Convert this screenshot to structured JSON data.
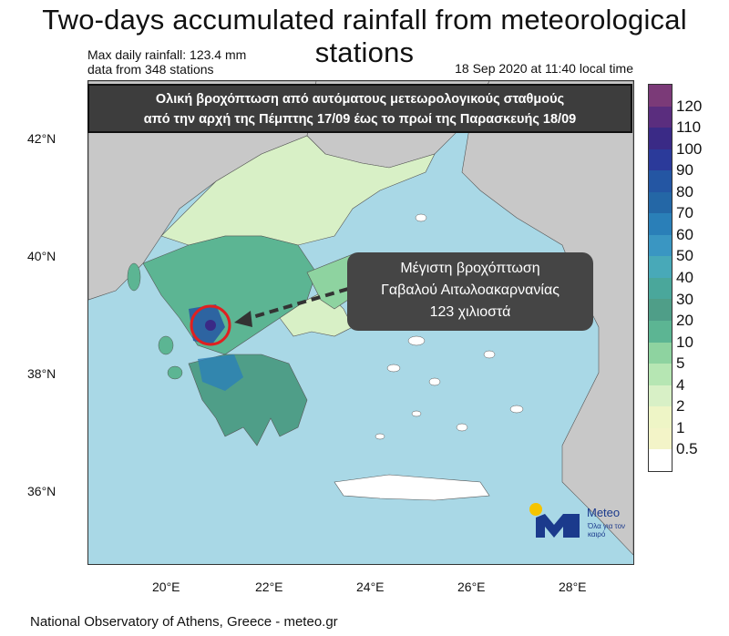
{
  "title": "Two-days accumulated rainfall from meteorological stations",
  "meta": {
    "max_daily": "Max daily rainfall: 123.4 mm",
    "stations": "data from 348 stations",
    "timestamp": "18 Sep 2020 at 11:40 local time"
  },
  "banner": {
    "line1": "Ολική βροχόπτωση από αυτόματους μετεωρολογικούς σταθμούς",
    "line2": "από την αρχή της Πέμπτης 17/09 έως το πρωί της Παρασκευής 18/09"
  },
  "callout": {
    "line1": "Μέγιστη βροχόπτωση",
    "line2": "Γαβαλού Αιτωλοακαρνανίας",
    "line3": "123 χιλιοστά"
  },
  "axes": {
    "lat_labels": [
      "42°N",
      "40°N",
      "38°N",
      "36°N"
    ],
    "lon_labels": [
      "20°E",
      "22°E",
      "24°E",
      "26°E",
      "28°E"
    ]
  },
  "legend": {
    "labels": [
      "120",
      "110",
      "100",
      "90",
      "80",
      "70",
      "60",
      "50",
      "40",
      "30",
      "20",
      "10",
      "5",
      "4",
      "2",
      "1",
      "0.5"
    ],
    "colors": [
      "#7b3a78",
      "#5a2d7e",
      "#3a2a86",
      "#2b3a9a",
      "#2456a3",
      "#2467a6",
      "#2a7fb8",
      "#3a96c2",
      "#48a9b8",
      "#4aa79b",
      "#4f9e88",
      "#5cb593",
      "#8ed3a0",
      "#b6e6b3",
      "#d8f0c6",
      "#eef5c6",
      "#f3f4c8",
      "#ffffff"
    ]
  },
  "footer": "National Observatory of Athens, Greece - meteo.gr",
  "logo": {
    "name": "Meteo",
    "tagline": "Όλα για τον καιρό",
    "colors": {
      "sun": "#f5c400",
      "mark": "#1b3a8c"
    }
  },
  "map_colors": {
    "sea": "#a9d8e6",
    "land_nodata": "#c8c8c8",
    "rain_low": "#d8f0c6",
    "rain_mid": "#5cb593",
    "rain_high": "#2456a3",
    "max_marker": "#e02020"
  }
}
